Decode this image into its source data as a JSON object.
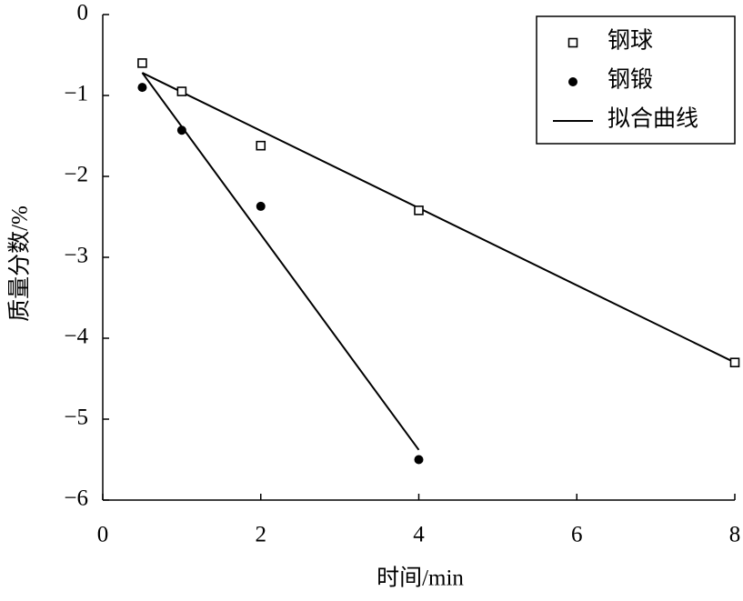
{
  "chart_data": {
    "type": "scatter",
    "xlabel": "时间/min",
    "ylabel": "质量分数/%",
    "xlim": [
      0,
      8
    ],
    "xticks": [
      0,
      2,
      4,
      6,
      8
    ],
    "ylim": [
      -6,
      0
    ],
    "yticks": [
      {
        "value": -6,
        "label": "−6"
      },
      {
        "value": -5,
        "label": "−5"
      },
      {
        "value": -4,
        "label": "−4"
      },
      {
        "value": -3,
        "label": "−3"
      },
      {
        "value": -2,
        "label": "−2"
      },
      {
        "value": -1,
        "label": "−1"
      },
      0
    ],
    "legend": "top-right",
    "series": [
      {
        "name": "钢球",
        "color": "#000000",
        "marker": "square",
        "x": [
          0.5,
          1,
          2,
          4,
          8
        ],
        "values": [
          -0.6,
          -0.95,
          -1.62,
          -2.42,
          -4.3
        ]
      },
      {
        "name": "钢锻",
        "color": "#000000",
        "marker": "circle",
        "x": [
          0.5,
          1,
          2,
          4
        ],
        "values": [
          -0.9,
          -1.43,
          -2.37,
          -5.5
        ]
      }
    ],
    "fit": {
      "name": "拟合曲线",
      "color": "#000000",
      "lines": [
        {
          "x": [
            0.5,
            8
          ],
          "values": [
            -0.72,
            -4.3
          ]
        },
        {
          "x": [
            0.5,
            4
          ],
          "values": [
            -0.72,
            -5.38
          ]
        }
      ]
    }
  }
}
